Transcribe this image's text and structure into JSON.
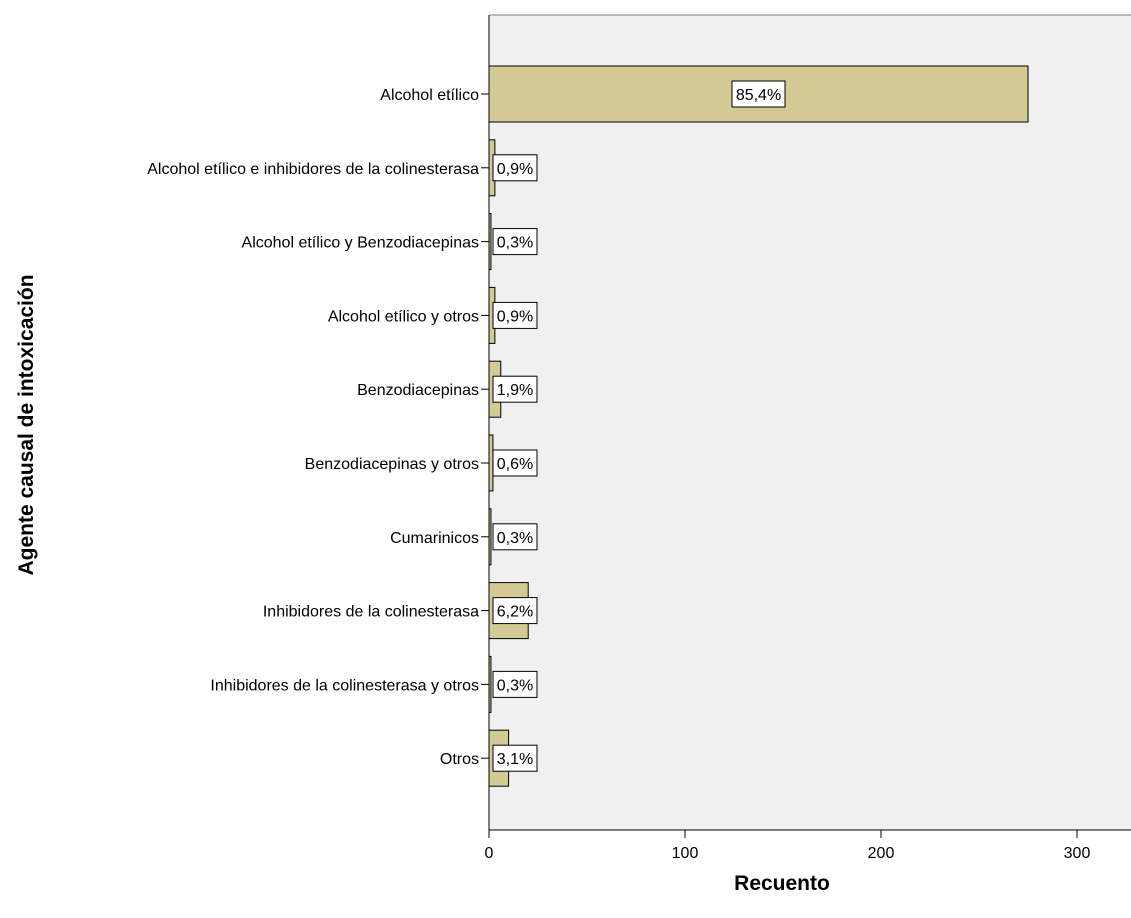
{
  "chart_data": {
    "type": "bar",
    "orientation": "horizontal",
    "xlabel": "Recuento",
    "ylabel": "Agente causal de intoxicación",
    "xlim": [
      0,
      330
    ],
    "xticks": [
      0,
      100,
      200,
      300
    ],
    "grid": false,
    "legend": "none",
    "bar_color": "#d3ca95",
    "plot_background": "#f0f0f0",
    "categories": [
      "Alcohol etílico",
      "Alcohol etílico e inhibidores de la colinesterasa",
      "Alcohol etílico y Benzodiacepinas",
      "Alcohol etílico y otros",
      "Benzodiacepinas",
      "Benzodiacepinas y otros",
      "Cumarinicos",
      "Inhibidores de la colinesterasa",
      "Inhibidores de la colinesterasa y otros",
      "Otros"
    ],
    "values": [
      275,
      3,
      1,
      3,
      6,
      2,
      1,
      20,
      1,
      10
    ],
    "data_labels": [
      "85,4%",
      "0,9%",
      "0,3%",
      "0,9%",
      "1,9%",
      "0,6%",
      "0,3%",
      "6,2%",
      "0,3%",
      "3,1%"
    ]
  }
}
